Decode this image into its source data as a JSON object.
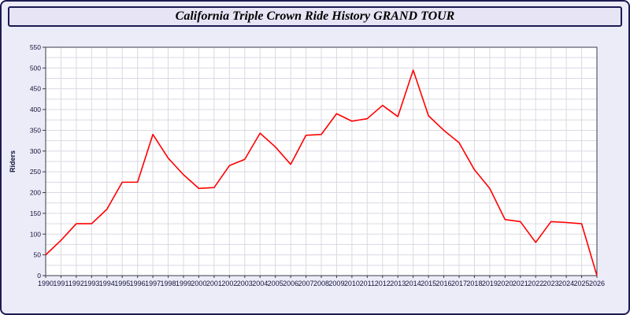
{
  "title": "California Triple Crown Ride History GRAND TOUR",
  "colors": {
    "page_background": "#ecebf8",
    "title_bar_background": "#e7e5f5",
    "border": "#1b1b52",
    "plot_background": "#ffffff",
    "gridline": "#d9d9e3",
    "axis_text": "#14143c",
    "line": "#ff0000"
  },
  "chart_data": {
    "type": "line",
    "title": "California Triple Crown Ride History GRAND TOUR",
    "xlabel": "",
    "ylabel": "Riders",
    "ylim": [
      0,
      550
    ],
    "ytick_step": 50,
    "grid_step_y": 25,
    "grid": true,
    "legend_position": "none",
    "line_color": "#ff0000",
    "x": [
      "1990",
      "1991",
      "1992",
      "1993",
      "1994",
      "1995",
      "1996",
      "1997",
      "1998",
      "1999",
      "2000",
      "2001",
      "2002",
      "2003",
      "2004",
      "2005",
      "2006",
      "2007",
      "2008",
      "2009",
      "2010",
      "2011",
      "2012",
      "2013",
      "2014",
      "2015",
      "2016",
      "2017",
      "2018",
      "2019",
      "2020",
      "2021",
      "2022",
      "2023",
      "2024",
      "2025",
      "2026"
    ],
    "values": [
      50,
      85,
      125,
      125,
      160,
      225,
      225,
      340,
      283,
      243,
      210,
      212,
      265,
      280,
      343,
      310,
      268,
      338,
      340,
      390,
      372,
      378,
      410,
      383,
      495,
      385,
      350,
      320,
      255,
      210,
      135,
      130,
      80,
      130,
      128,
      125,
      0
    ]
  }
}
